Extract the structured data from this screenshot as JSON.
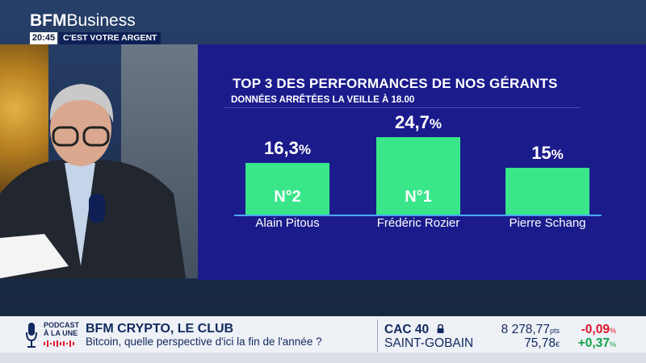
{
  "channel": {
    "logo_bfm": "BFM",
    "logo_business": "Business",
    "time": "20:45",
    "slogan": "C'EST VOTRE ARGENT"
  },
  "graphic": {
    "title": "TOP 3 DES PERFORMANCES DE NOS GÉRANTS",
    "subtitle": "DONNÉES ARRÊTÉES LA VEILLE À 18.00"
  },
  "chart_data": {
    "type": "bar",
    "title": "TOP 3 DES PERFORMANCES DE NOS GÉRANTS",
    "subtitle": "DONNÉES ARRÊTÉES LA VEILLE À 18.00",
    "categories": [
      "Alain Pitous",
      "Frédéric Rozier",
      "Pierre Schang"
    ],
    "values": [
      16.3,
      24.7,
      15
    ],
    "value_labels": [
      "16,3",
      "24,7",
      "15"
    ],
    "value_suffix": "%",
    "rank_labels": [
      "N°2",
      "N°1",
      ""
    ],
    "ylim": [
      0,
      26
    ],
    "grid": false,
    "bar_color": "#39e68a"
  },
  "ticker": {
    "podcast_line1": "PODCAST",
    "podcast_line2": "À LA UNE",
    "show_title": "BFM CRYPTO, LE CLUB",
    "show_subtitle": "Bitcoin, quelle perspective d'ici la fin de l'année ?",
    "stocks": [
      {
        "name": "CAC 40",
        "value": "8 278,77",
        "unit": "pts",
        "change": "-0,09",
        "change_unit": "%",
        "change_color": "#e0162b"
      },
      {
        "name": "SAINT-GOBAIN",
        "value": "75,78",
        "unit": "€",
        "change": "+0,37",
        "change_unit": "%",
        "change_color": "#12a34a"
      }
    ]
  },
  "colors": {
    "panel": "#1b1b8c",
    "bars": "#39e68a",
    "ticker_bg": "#eef1f6"
  }
}
